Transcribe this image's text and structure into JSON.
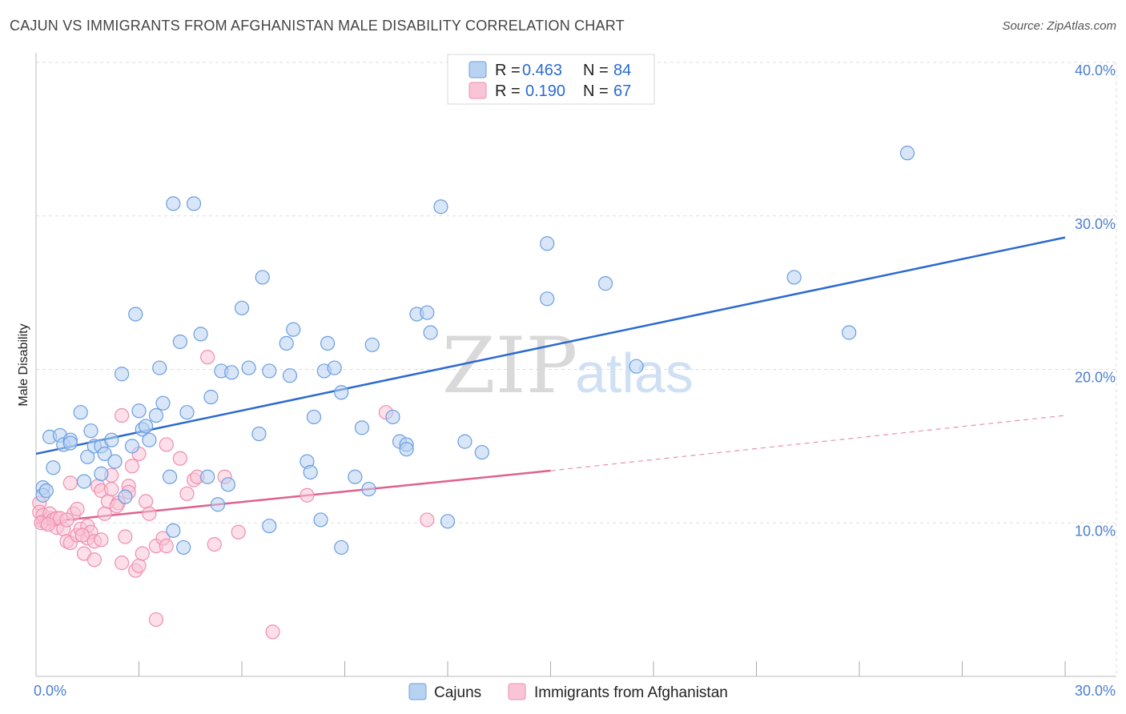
{
  "title": "CAJUN VS IMMIGRANTS FROM AFGHANISTAN MALE DISABILITY CORRELATION CHART",
  "source": "Source: ZipAtlas.com",
  "watermark": {
    "zip": "ZIP",
    "atlas": "atlas"
  },
  "legend": {
    "r_label": "R =",
    "n_label": "N =",
    "entries": [
      {
        "r": "0.463",
        "n": "84"
      },
      {
        "r": "0.190",
        "n": "67"
      }
    ]
  },
  "bottom_legend": [
    "Cajuns",
    "Immigrants from Afghanistan"
  ],
  "colors": {
    "cajun_fill": "#b8d2f2",
    "cajun_stroke": "#6a9ee0",
    "cajun_line": "#2a6ad0",
    "afghan_fill": "#f9c5d6",
    "afghan_stroke": "#ee8fb0",
    "afghan_line": "#e0608e",
    "grid": "#dddddd",
    "tick_text": "#4a7fd1"
  },
  "chart_data": {
    "type": "scatter",
    "title": "CAJUN VS IMMIGRANTS FROM AFGHANISTAN MALE DISABILITY CORRELATION CHART",
    "xlabel": "",
    "ylabel": "Male Disability",
    "xlim": [
      0,
      30
    ],
    "ylim": [
      0,
      40
    ],
    "x_tick_labels": [
      "0.0%",
      "30.0%"
    ],
    "y_ticks": [
      10,
      20,
      30,
      40
    ],
    "y_tick_labels": [
      "10.0%",
      "20.0%",
      "30.0%",
      "40.0%"
    ],
    "x_minor_ticks": [
      3,
      6,
      9,
      12,
      15,
      18,
      21,
      24,
      27,
      30
    ],
    "series": [
      {
        "name": "Cajuns",
        "r": 0.463,
        "n": 84,
        "trend": {
          "x": [
            0,
            30
          ],
          "y": [
            14.5,
            28.6
          ]
        },
        "points": [
          [
            0.2,
            12.3
          ],
          [
            0.2,
            11.8
          ],
          [
            0.4,
            15.6
          ],
          [
            0.5,
            13.6
          ],
          [
            0.7,
            15.7
          ],
          [
            0.8,
            15.1
          ],
          [
            1.0,
            15.4
          ],
          [
            1.0,
            15.2
          ],
          [
            1.3,
            17.2
          ],
          [
            1.4,
            12.7
          ],
          [
            1.5,
            14.3
          ],
          [
            1.6,
            16.0
          ],
          [
            1.7,
            15.0
          ],
          [
            1.9,
            13.2
          ],
          [
            1.9,
            15.0
          ],
          [
            2.0,
            14.5
          ],
          [
            2.2,
            15.4
          ],
          [
            2.3,
            14.0
          ],
          [
            2.5,
            19.7
          ],
          [
            2.6,
            11.7
          ],
          [
            2.8,
            15.0
          ],
          [
            2.9,
            23.6
          ],
          [
            3.0,
            17.3
          ],
          [
            3.1,
            16.1
          ],
          [
            3.2,
            16.3
          ],
          [
            3.3,
            15.4
          ],
          [
            3.5,
            17.0
          ],
          [
            3.6,
            20.1
          ],
          [
            3.7,
            17.8
          ],
          [
            3.9,
            13.0
          ],
          [
            4.0,
            9.5
          ],
          [
            4.0,
            30.8
          ],
          [
            4.2,
            21.8
          ],
          [
            4.3,
            8.4
          ],
          [
            4.4,
            17.2
          ],
          [
            4.6,
            30.8
          ],
          [
            4.8,
            22.3
          ],
          [
            5.0,
            13.0
          ],
          [
            5.1,
            18.2
          ],
          [
            5.3,
            11.2
          ],
          [
            5.4,
            19.9
          ],
          [
            5.6,
            12.5
          ],
          [
            5.7,
            19.8
          ],
          [
            6.0,
            24.0
          ],
          [
            6.2,
            20.1
          ],
          [
            6.5,
            15.8
          ],
          [
            6.6,
            26.0
          ],
          [
            6.8,
            9.8
          ],
          [
            6.8,
            19.9
          ],
          [
            7.3,
            21.7
          ],
          [
            7.4,
            19.6
          ],
          [
            7.5,
            22.6
          ],
          [
            7.9,
            14.0
          ],
          [
            8.0,
            13.3
          ],
          [
            8.1,
            16.9
          ],
          [
            8.3,
            10.2
          ],
          [
            8.4,
            19.9
          ],
          [
            8.5,
            21.7
          ],
          [
            8.7,
            20.1
          ],
          [
            8.9,
            8.4
          ],
          [
            8.9,
            18.5
          ],
          [
            9.3,
            13.0
          ],
          [
            9.5,
            16.2
          ],
          [
            9.7,
            12.2
          ],
          [
            9.8,
            21.6
          ],
          [
            10.4,
            16.9
          ],
          [
            10.6,
            15.3
          ],
          [
            10.8,
            15.1
          ],
          [
            10.8,
            14.8
          ],
          [
            11.1,
            23.6
          ],
          [
            11.4,
            23.7
          ],
          [
            11.5,
            22.4
          ],
          [
            11.8,
            30.6
          ],
          [
            12.0,
            10.1
          ],
          [
            12.5,
            15.3
          ],
          [
            13.0,
            14.6
          ],
          [
            14.9,
            28.2
          ],
          [
            14.9,
            24.6
          ],
          [
            16.6,
            25.6
          ],
          [
            17.5,
            20.2
          ],
          [
            22.1,
            26.0
          ],
          [
            23.7,
            22.4
          ],
          [
            25.4,
            34.1
          ],
          [
            0.3,
            12.1
          ]
        ]
      },
      {
        "name": "Immigrants from Afghanistan",
        "r": 0.19,
        "n": 67,
        "trend": {
          "x": [
            0,
            15
          ],
          "y": [
            10.0,
            13.4
          ]
        },
        "trend_extension": {
          "x": [
            15,
            30
          ],
          "y": [
            13.4,
            17.0
          ]
        },
        "points": [
          [
            0.1,
            11.3
          ],
          [
            0.1,
            10.7
          ],
          [
            0.2,
            10.1
          ],
          [
            0.2,
            10.5
          ],
          [
            0.3,
            10.0
          ],
          [
            0.4,
            10.3
          ],
          [
            0.4,
            10.6
          ],
          [
            0.5,
            10.2
          ],
          [
            0.6,
            9.7
          ],
          [
            0.6,
            10.3
          ],
          [
            0.7,
            10.3
          ],
          [
            0.8,
            9.6
          ],
          [
            0.9,
            8.8
          ],
          [
            1.0,
            8.7
          ],
          [
            1.0,
            12.6
          ],
          [
            1.1,
            10.6
          ],
          [
            1.2,
            9.2
          ],
          [
            1.2,
            10.9
          ],
          [
            1.3,
            9.6
          ],
          [
            1.4,
            8.0
          ],
          [
            1.5,
            9.8
          ],
          [
            1.5,
            9.0
          ],
          [
            1.6,
            9.4
          ],
          [
            1.7,
            8.8
          ],
          [
            1.7,
            7.6
          ],
          [
            1.8,
            12.4
          ],
          [
            1.9,
            12.1
          ],
          [
            1.9,
            8.9
          ],
          [
            2.0,
            10.6
          ],
          [
            2.1,
            11.4
          ],
          [
            2.2,
            13.1
          ],
          [
            2.2,
            12.2
          ],
          [
            2.4,
            11.3
          ],
          [
            2.5,
            7.4
          ],
          [
            2.5,
            17.0
          ],
          [
            2.6,
            9.1
          ],
          [
            2.7,
            12.4
          ],
          [
            2.7,
            12.0
          ],
          [
            2.8,
            13.7
          ],
          [
            2.9,
            6.9
          ],
          [
            3.0,
            14.5
          ],
          [
            3.0,
            7.2
          ],
          [
            3.1,
            8.0
          ],
          [
            3.2,
            11.4
          ],
          [
            3.3,
            10.6
          ],
          [
            3.5,
            3.7
          ],
          [
            3.5,
            8.5
          ],
          [
            3.7,
            9.0
          ],
          [
            3.8,
            8.5
          ],
          [
            3.8,
            15.1
          ],
          [
            4.2,
            14.2
          ],
          [
            4.4,
            11.9
          ],
          [
            4.6,
            12.8
          ],
          [
            4.7,
            13.0
          ],
          [
            5.0,
            20.8
          ],
          [
            5.2,
            8.6
          ],
          [
            5.5,
            13.0
          ],
          [
            5.9,
            9.4
          ],
          [
            6.9,
            2.9
          ],
          [
            7.9,
            11.8
          ],
          [
            10.2,
            17.2
          ],
          [
            11.4,
            10.2
          ],
          [
            0.15,
            10.0
          ],
          [
            0.35,
            9.9
          ],
          [
            1.35,
            9.2
          ],
          [
            2.35,
            11.1
          ],
          [
            0.9,
            10.2
          ]
        ]
      }
    ]
  }
}
